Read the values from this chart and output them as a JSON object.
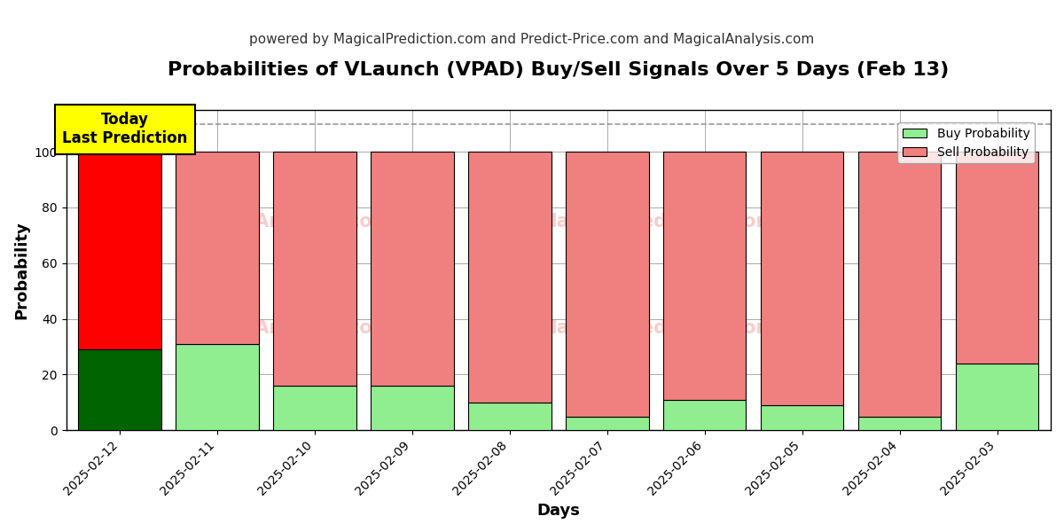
{
  "title": "Probabilities of VLaunch (VPAD) Buy/Sell Signals Over 5 Days (Feb 13)",
  "subtitle": "powered by MagicalPrediction.com and Predict-Price.com and MagicalAnalysis.com",
  "xlabel": "Days",
  "ylabel": "Probability",
  "dates": [
    "2025-02-12",
    "2025-02-11",
    "2025-02-10",
    "2025-02-09",
    "2025-02-08",
    "2025-02-07",
    "2025-02-06",
    "2025-02-05",
    "2025-02-04",
    "2025-02-03"
  ],
  "buy_probs": [
    29,
    31,
    16,
    16,
    10,
    5,
    11,
    9,
    5,
    24
  ],
  "sell_probs": [
    71,
    69,
    84,
    84,
    90,
    95,
    89,
    91,
    95,
    76
  ],
  "today_buy_color": "#006400",
  "today_sell_color": "#FF0000",
  "other_buy_color": "#90EE90",
  "other_sell_color": "#F08080",
  "bar_edge_color": "#000000",
  "bg_color": "#ffffff",
  "grid_color": "#aaaaaa",
  "ylim": [
    0,
    115
  ],
  "dashed_line_y": 110,
  "today_label_text": "Today\nLast Prediction",
  "today_label_bg": "#FFFF00",
  "legend_buy_label": "Buy Probability",
  "legend_sell_label": "Sell Probability",
  "title_fontsize": 16,
  "subtitle_fontsize": 11,
  "axis_label_fontsize": 13,
  "tick_fontsize": 10,
  "bar_width": 0.85
}
